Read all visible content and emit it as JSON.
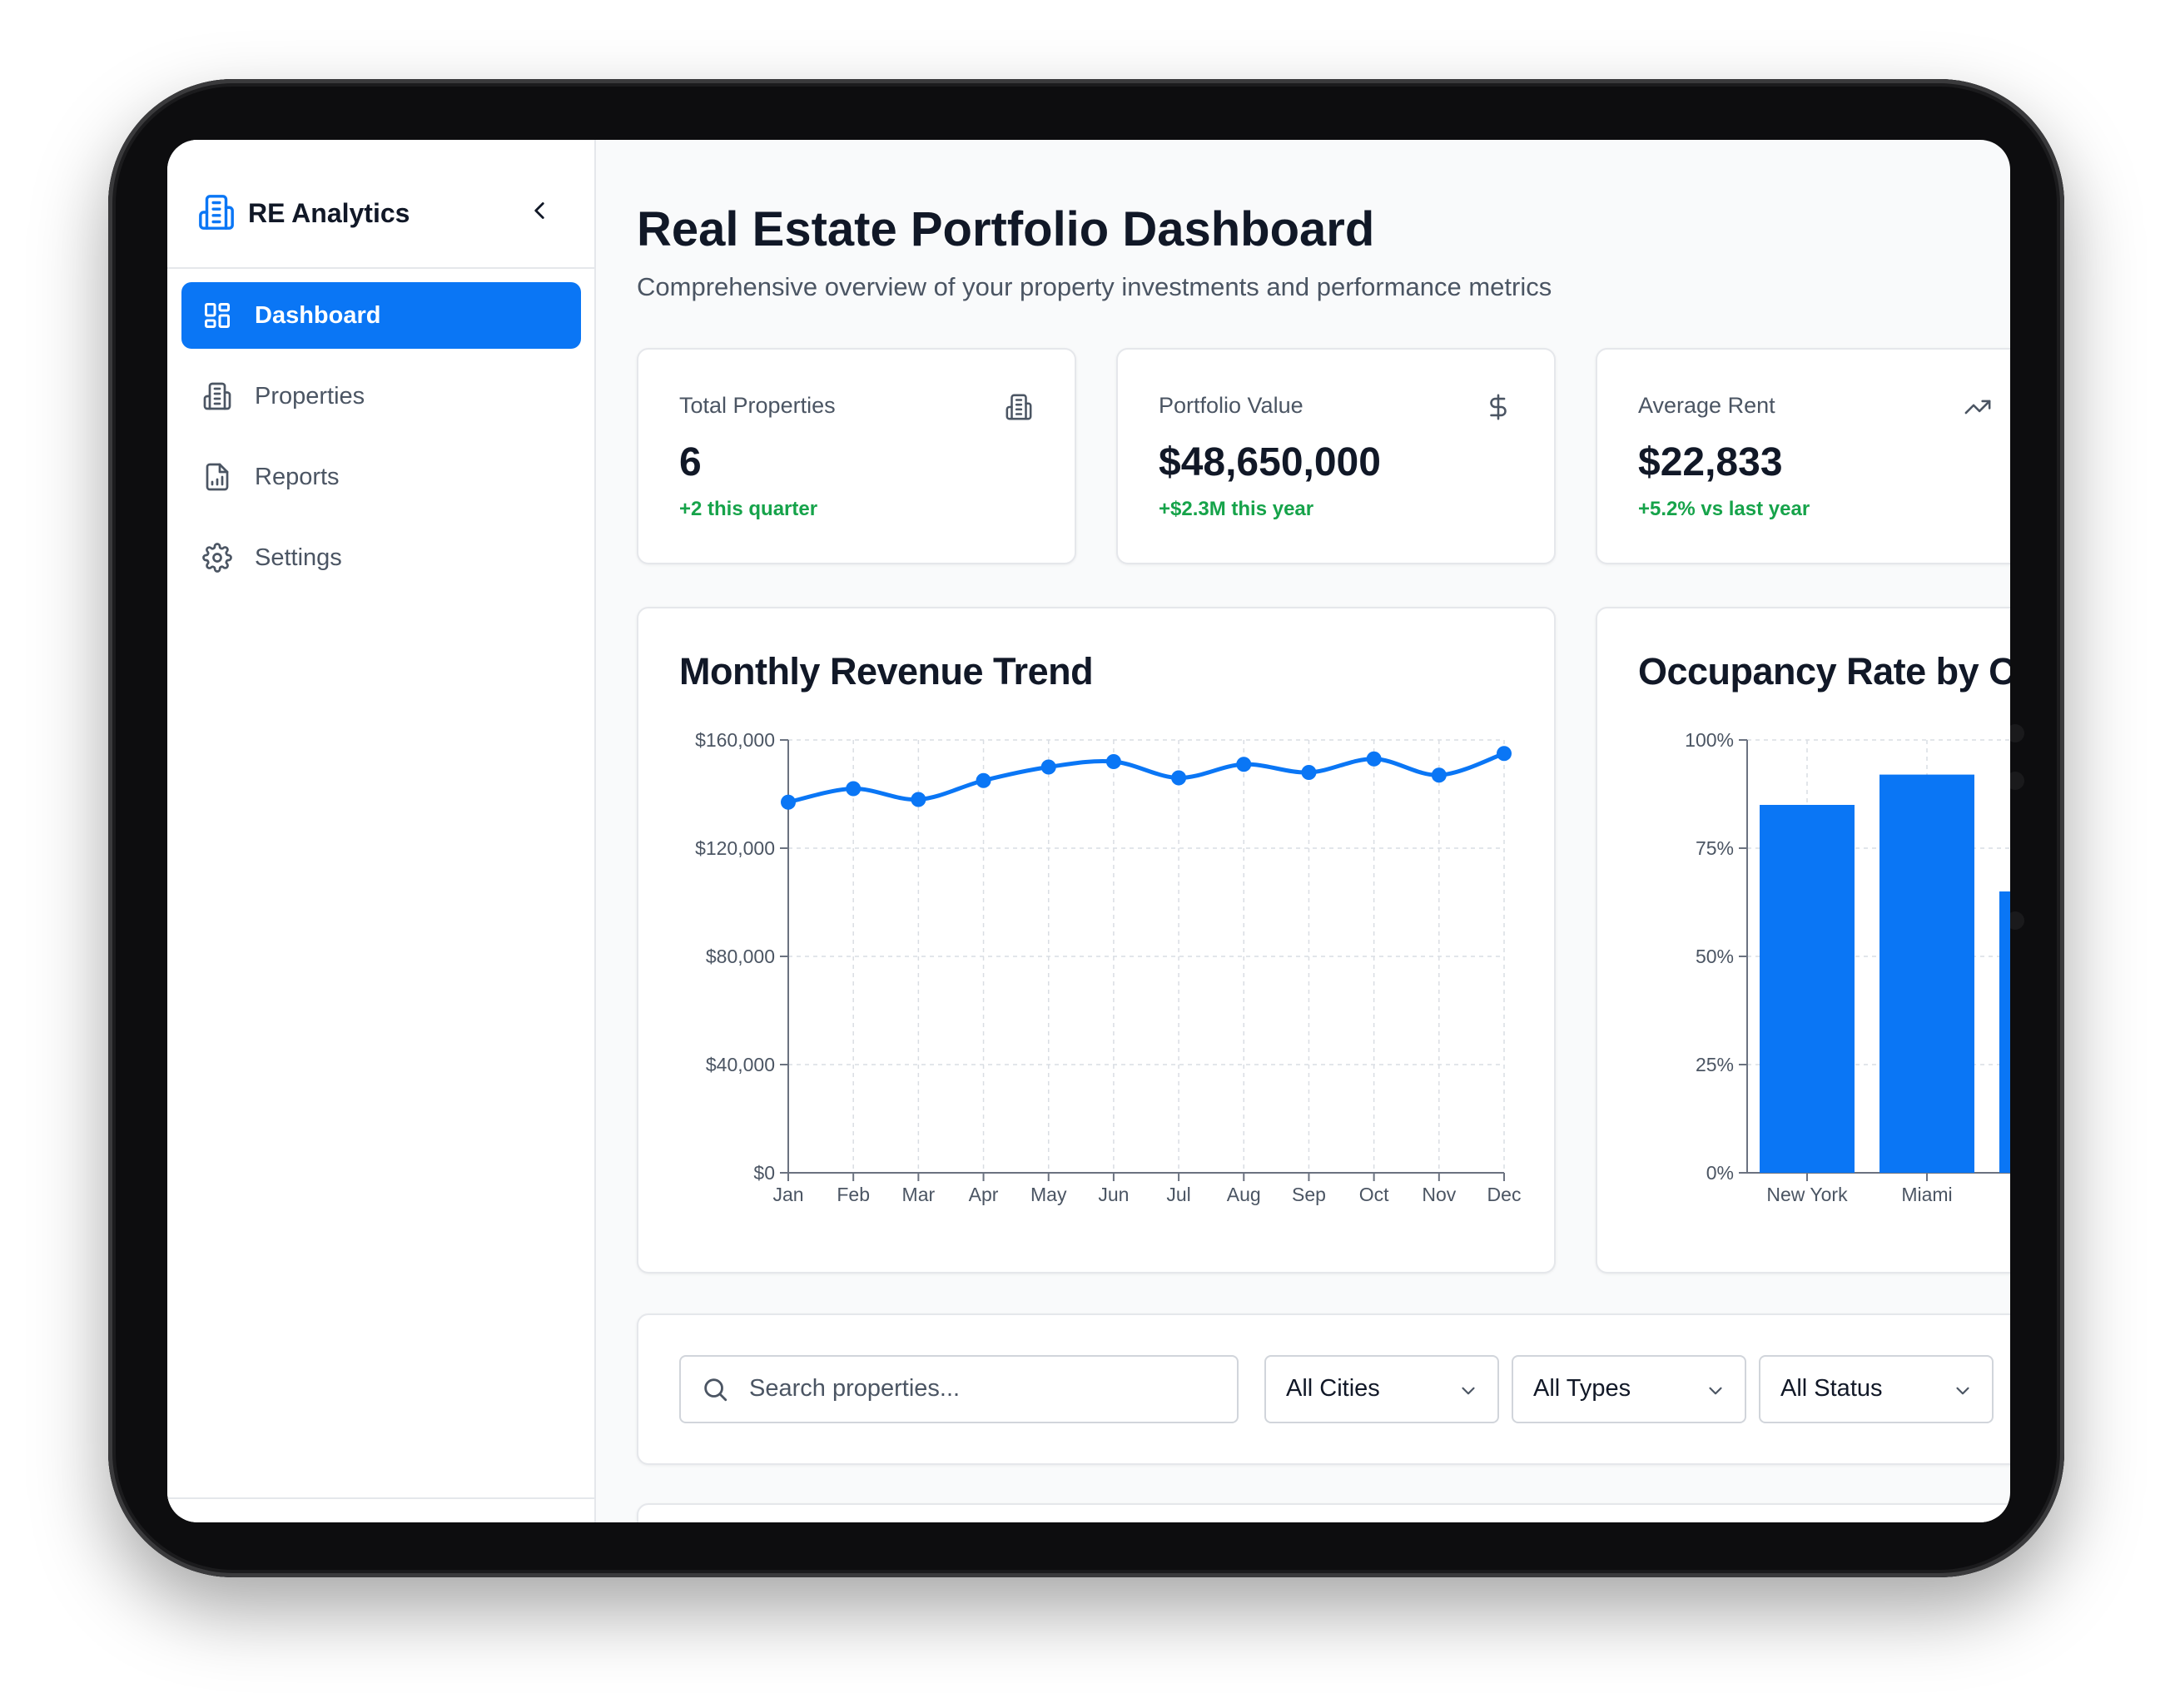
{
  "app": {
    "name": "RE Analytics",
    "brand_icon": "building-icon"
  },
  "sidebar": {
    "items": [
      {
        "label": "Dashboard",
        "icon": "grid-icon",
        "active": true
      },
      {
        "label": "Properties",
        "icon": "building-icon",
        "active": false
      },
      {
        "label": "Reports",
        "icon": "file-chart-icon",
        "active": false
      },
      {
        "label": "Settings",
        "icon": "gear-icon",
        "active": false
      }
    ]
  },
  "header": {
    "title": "Real Estate Portfolio Dashboard",
    "subtitle": "Comprehensive overview of your property investments and performance metrics"
  },
  "stats": [
    {
      "label": "Total Properties",
      "value": "6",
      "change": "+2 this quarter",
      "icon": "building-icon"
    },
    {
      "label": "Portfolio Value",
      "value": "$48,650,000",
      "change": "+$2.3M this year",
      "icon": "dollar-icon"
    },
    {
      "label": "Average Rent",
      "value": "$22,833",
      "change": "+5.2% vs last year",
      "icon": "trending-up-icon"
    }
  ],
  "colors": {
    "accent": "#0a76f5",
    "positive": "#16a34a",
    "text_primary": "#111827",
    "text_secondary": "#4b5563"
  },
  "chart_data": [
    {
      "type": "line",
      "title": "Monthly Revenue Trend",
      "categories": [
        "Jan",
        "Feb",
        "Mar",
        "Apr",
        "May",
        "Jun",
        "Jul",
        "Aug",
        "Sep",
        "Oct",
        "Nov",
        "Dec"
      ],
      "series": [
        {
          "values": [
            137000,
            142000,
            138000,
            145000,
            150000,
            152000,
            146000,
            151000,
            148000,
            153000,
            147000,
            155000
          ]
        }
      ],
      "ylim": [
        0,
        160000
      ],
      "yticks": [
        "$0",
        "$40,000",
        "$80,000",
        "$120,000",
        "$160,000"
      ],
      "ytick_values": [
        0,
        40000,
        80000,
        120000,
        160000
      ],
      "grid": true
    },
    {
      "type": "bar",
      "title": "Occupancy Rate by C",
      "categories": [
        "New York",
        "Miami",
        ""
      ],
      "values": [
        85,
        92,
        65
      ],
      "ylim": [
        0,
        100
      ],
      "yticks": [
        "0%",
        "25%",
        "50%",
        "75%",
        "100%"
      ],
      "ytick_values": [
        0,
        25,
        50,
        75,
        100
      ],
      "grid": true
    }
  ],
  "filters": {
    "search_placeholder": "Search properties...",
    "search_value": "",
    "selects": [
      {
        "value": "All Cities"
      },
      {
        "value": "All Types"
      },
      {
        "value": "All Status"
      }
    ]
  }
}
